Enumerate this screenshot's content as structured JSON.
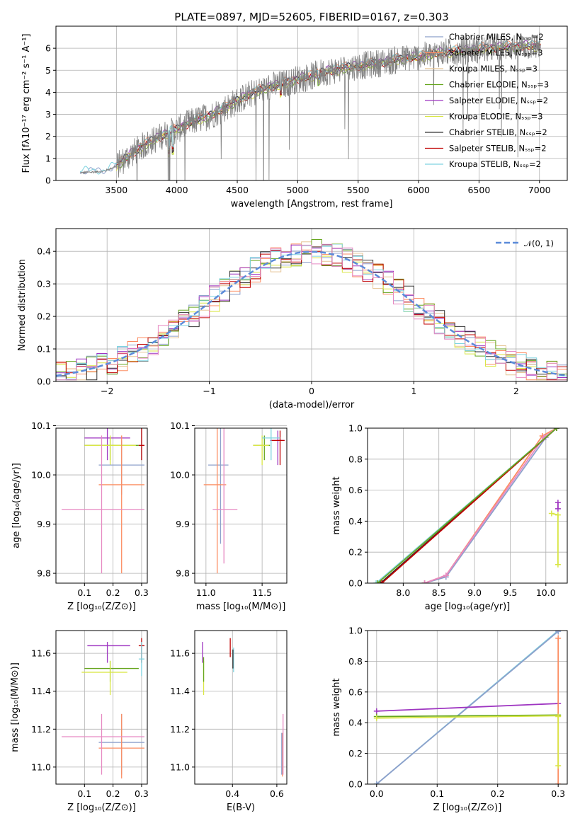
{
  "chart_data": [
    {
      "id": "spectrum",
      "type": "line",
      "title": "PLATE=0897, MJD=52605, FIBERID=0167, z=0.303",
      "xlabel": "wavelength [Angstrom, rest frame]",
      "ylabel": "Flux [fλ10⁻¹⁷ erg cm⁻² s⁻¹ A⁻¹]",
      "xlim": [
        3000,
        7230
      ],
      "ylim": [
        0,
        7
      ],
      "xticks": [
        3500,
        4000,
        4500,
        5000,
        5500,
        6000,
        6500,
        7000
      ],
      "yticks": [
        0,
        1,
        2,
        3,
        4,
        5,
        6
      ],
      "grid": true,
      "legend_position": "top-right",
      "data_trace": {
        "x": [
          3200,
          3300,
          3400,
          3500,
          3600,
          3700,
          3800,
          3900,
          4000,
          4100,
          4200,
          4300,
          4400,
          4500,
          4600,
          4700,
          4800,
          4900,
          5000,
          5100,
          5200,
          5300,
          5400,
          5500,
          5600,
          5700,
          5800,
          5900,
          6000,
          6100,
          6200,
          6300,
          6400,
          6500,
          6600,
          6700,
          6800,
          6900,
          7000
        ],
        "y": [
          0.35,
          0.38,
          0.42,
          0.65,
          1.1,
          1.5,
          1.8,
          2.1,
          2.3,
          2.6,
          2.8,
          3.0,
          3.3,
          3.6,
          3.9,
          4.1,
          4.3,
          4.4,
          4.6,
          4.7,
          4.9,
          5.0,
          5.1,
          5.2,
          5.25,
          5.35,
          5.45,
          5.55,
          5.6,
          5.7,
          5.8,
          5.85,
          5.9,
          5.95,
          6.0,
          6.05,
          6.05,
          6.1,
          6.1
        ]
      },
      "series": [
        {
          "name": "Chabrier MILES, Nₛₛₚ=2",
          "color": "#8da0cb",
          "offset": 0.04
        },
        {
          "name": "Salpeter MILES, Nₛₛₚ=3",
          "color": "#fc8d62",
          "offset": 0.1
        },
        {
          "name": "Kroupa MILES, Nₛₛₚ=3",
          "color": "#e5c494",
          "offset": 0.0
        },
        {
          "name": "Chabrier ELODIE, Nₛₛₚ=3",
          "color": "#66a61e",
          "offset": -0.04
        },
        {
          "name": "Salpeter ELODIE, Nₛₛₚ=2",
          "color": "#9e35c1",
          "offset": 0.06
        },
        {
          "name": "Kroupa ELODIE, Nₛₛₚ=3",
          "color": "#d9e645",
          "offset": -0.06
        },
        {
          "name": "Chabrier STELIB, Nₛₛₚ=2",
          "color": "#333333",
          "offset": 0.02
        },
        {
          "name": "Salpeter STELIB, Nₛₛₚ=2",
          "color": "#c00000",
          "offset": -0.02
        },
        {
          "name": "Kroupa STELIB, Nₛₛₚ=2",
          "color": "#7fd4e0",
          "offset": 0.08
        }
      ]
    },
    {
      "id": "residuals",
      "type": "histogram",
      "title": "",
      "xlabel": "(data-model)/error",
      "ylabel": "Normed distribution",
      "xlim": [
        -2.5,
        2.5
      ],
      "ylim": [
        0,
        0.47
      ],
      "xticks": [
        -2,
        -1,
        0,
        1,
        2
      ],
      "yticks": [
        0.0,
        0.1,
        0.2,
        0.3,
        0.4
      ],
      "grid": true,
      "legend_position": "top-right",
      "legend": "𝒩(0, 1)",
      "gaussian_color": "#5b8bd9",
      "bin_width": 0.1
    },
    {
      "id": "z-age",
      "type": "errorbar",
      "xlabel": "Z [log₁₀(Z/Z⊙)]",
      "ylabel": "age  [log₁₀(age/yr)]",
      "xlim": [
        0.0,
        0.32
      ],
      "ylim": [
        9.78,
        10.095
      ],
      "xticks": [
        0.1,
        0.2,
        0.3
      ],
      "yticks": [
        9.8,
        9.9,
        10.0,
        10.1
      ],
      "points": [
        {
          "x": 0.18,
          "xlo": 0.1,
          "xhi": 0.26,
          "y": 10.075,
          "ylo": 10.03,
          "yhi": 10.095,
          "color": "#9e35c1"
        },
        {
          "x": 0.19,
          "xlo": 0.1,
          "xhi": 0.29,
          "y": 10.06,
          "ylo": 10.03,
          "yhi": 10.075,
          "color": "#66a61e"
        },
        {
          "x": 0.19,
          "xlo": 0.1,
          "xhi": 0.28,
          "y": 10.06,
          "ylo": 10.02,
          "yhi": 10.08,
          "color": "#d9e645"
        },
        {
          "x": 0.3,
          "xlo": 0.29,
          "xhi": 0.31,
          "y": 10.06,
          "ylo": 10.03,
          "yhi": 10.095,
          "color": "#7fd4e0"
        },
        {
          "x": 0.3,
          "xlo": 0.29,
          "xhi": 0.31,
          "y": 10.06,
          "ylo": 10.03,
          "yhi": 10.095,
          "color": "#c00000"
        },
        {
          "x": 0.23,
          "xlo": 0.15,
          "xhi": 0.31,
          "y": 10.02,
          "ylo": 9.96,
          "yhi": 10.07,
          "color": "#8da0cb"
        },
        {
          "x": 0.23,
          "xlo": 0.15,
          "xhi": 0.31,
          "y": 9.98,
          "ylo": 9.8,
          "yhi": 10.08,
          "color": "#fc8d62"
        },
        {
          "x": 0.16,
          "xlo": 0.02,
          "xhi": 0.31,
          "y": 9.93,
          "ylo": 9.8,
          "yhi": 10.08,
          "color": "#e78ac3"
        }
      ]
    },
    {
      "id": "mass-age",
      "type": "errorbar",
      "xlabel": "mass [log₁₀(M/M⊙)]",
      "ylabel": "",
      "xlim": [
        10.9,
        11.72
      ],
      "ylim": [
        9.78,
        10.095
      ],
      "xticks": [
        11.0,
        11.5
      ],
      "yticks": [
        9.8,
        9.9,
        10.0,
        10.1
      ],
      "points": [
        {
          "x": 11.64,
          "xlo": 11.57,
          "xhi": 11.7,
          "y": 10.07,
          "ylo": 10.02,
          "yhi": 10.09,
          "color": "#9e35c1"
        },
        {
          "x": 11.66,
          "xlo": 11.58,
          "xhi": 11.7,
          "y": 10.07,
          "ylo": 10.02,
          "yhi": 10.09,
          "color": "#c00000"
        },
        {
          "x": 11.52,
          "xlo": 11.42,
          "xhi": 11.57,
          "y": 10.06,
          "ylo": 10.03,
          "yhi": 10.08,
          "color": "#66a61e"
        },
        {
          "x": 11.5,
          "xlo": 11.42,
          "xhi": 11.56,
          "y": 10.06,
          "ylo": 10.02,
          "yhi": 10.08,
          "color": "#d9e645"
        },
        {
          "x": 11.58,
          "xlo": 11.5,
          "xhi": 11.66,
          "y": 10.075,
          "ylo": 10.03,
          "yhi": 10.095,
          "color": "#7fd4e0"
        },
        {
          "x": 11.13,
          "xlo": 11.02,
          "xhi": 11.2,
          "y": 10.02,
          "ylo": 9.86,
          "yhi": 10.1,
          "color": "#8da0cb"
        },
        {
          "x": 11.1,
          "xlo": 10.98,
          "xhi": 11.18,
          "y": 9.98,
          "ylo": 9.8,
          "yhi": 10.1,
          "color": "#fc8d62"
        },
        {
          "x": 11.16,
          "xlo": 11.06,
          "xhi": 11.28,
          "y": 9.93,
          "ylo": 9.82,
          "yhi": 10.1,
          "color": "#e78ac3"
        }
      ]
    },
    {
      "id": "age-massweight",
      "type": "line",
      "xlabel": "age  [log₁₀(age/yr)]",
      "ylabel": "mass weight",
      "xlim": [
        7.5,
        10.3
      ],
      "ylim": [
        0,
        1
      ],
      "xticks": [
        8.0,
        8.5,
        9.0,
        9.5,
        10.0
      ],
      "yticks": [
        0.0,
        0.2,
        0.4,
        0.6,
        0.8,
        1.0
      ],
      "series": [
        {
          "color": "#8da0cb",
          "x": [
            8.3,
            8.6,
            10.0,
            10.15
          ],
          "y": [
            0.0,
            0.04,
            0.94,
            1.0
          ]
        },
        {
          "color": "#fc8d62",
          "x": [
            8.3,
            8.6,
            9.95,
            10.15
          ],
          "y": [
            0.0,
            0.05,
            0.95,
            1.0
          ]
        },
        {
          "color": "#e78ac3",
          "x": [
            8.3,
            8.6,
            9.97,
            10.15
          ],
          "y": [
            0.0,
            0.05,
            0.94,
            1.0
          ]
        },
        {
          "color": "#333333",
          "x": [
            7.68,
            10.15
          ],
          "y": [
            0.0,
            1.0
          ]
        },
        {
          "color": "#c00000",
          "x": [
            7.7,
            10.15
          ],
          "y": [
            0.0,
            1.0
          ]
        },
        {
          "color": "#7fd4e0",
          "x": [
            7.62,
            10.15
          ],
          "y": [
            0.0,
            1.0
          ]
        },
        {
          "color": "#66a61e",
          "x": [
            7.64,
            10.15
          ],
          "y": [
            0.0,
            1.0
          ]
        },
        {
          "color": "#9e35c1",
          "x": [
            10.17,
            10.17
          ],
          "y": [
            0.48,
            0.52
          ]
        },
        {
          "color": "#d9e645",
          "x": [
            10.08,
            10.17,
            10.17
          ],
          "y": [
            0.45,
            0.44,
            0.12
          ]
        }
      ]
    },
    {
      "id": "z-mass",
      "type": "errorbar",
      "xlabel": "Z [log₁₀(Z/Z⊙)]",
      "ylabel": "mass [log₁₀(M/M⊙)]",
      "xlim": [
        0.0,
        0.32
      ],
      "ylim": [
        10.91,
        11.72
      ],
      "xticks": [
        0.1,
        0.2,
        0.3
      ],
      "yticks": [
        11.0,
        11.2,
        11.4,
        11.6
      ],
      "points": [
        {
          "x": 0.18,
          "xlo": 0.11,
          "xhi": 0.26,
          "y": 11.64,
          "ylo": 11.55,
          "yhi": 11.66,
          "color": "#9e35c1"
        },
        {
          "x": 0.3,
          "xlo": 0.29,
          "xhi": 0.31,
          "y": 11.64,
          "ylo": 11.55,
          "yhi": 11.68,
          "color": "#c00000"
        },
        {
          "x": 0.19,
          "xlo": 0.1,
          "xhi": 0.29,
          "y": 11.52,
          "ylo": 11.45,
          "yhi": 11.56,
          "color": "#66a61e"
        },
        {
          "x": 0.19,
          "xlo": 0.09,
          "xhi": 0.25,
          "y": 11.5,
          "ylo": 11.38,
          "yhi": 11.56,
          "color": "#d9e645"
        },
        {
          "x": 0.3,
          "xlo": 0.29,
          "xhi": 0.31,
          "y": 11.57,
          "ylo": 11.48,
          "yhi": 11.66,
          "color": "#7fd4e0"
        },
        {
          "x": 0.23,
          "xlo": 0.15,
          "xhi": 0.31,
          "y": 11.13,
          "ylo": 10.96,
          "yhi": 11.28,
          "color": "#8da0cb"
        },
        {
          "x": 0.23,
          "xlo": 0.15,
          "xhi": 0.31,
          "y": 11.1,
          "ylo": 10.94,
          "yhi": 11.28,
          "color": "#fc8d62"
        },
        {
          "x": 0.16,
          "xlo": 0.02,
          "xhi": 0.31,
          "y": 11.16,
          "ylo": 10.96,
          "yhi": 11.28,
          "color": "#e78ac3"
        }
      ]
    },
    {
      "id": "ebv-mass",
      "type": "errorbar",
      "xlabel": "E(B-V)",
      "ylabel": "",
      "xlim": [
        0.23,
        0.645
      ],
      "ylim": [
        10.91,
        11.72
      ],
      "xticks": [
        0.4,
        0.6
      ],
      "yticks": [
        11.0,
        11.2,
        11.4,
        11.6
      ],
      "points": [
        {
          "x": 0.265,
          "xlo": 0.265,
          "xhi": 0.265,
          "y": 11.6,
          "ylo": 11.55,
          "yhi": 11.66,
          "color": "#9e35c1"
        },
        {
          "x": 0.27,
          "xlo": 0.27,
          "xhi": 0.27,
          "y": 11.5,
          "ylo": 11.38,
          "yhi": 11.56,
          "color": "#d9e645"
        },
        {
          "x": 0.27,
          "xlo": 0.27,
          "xhi": 0.27,
          "y": 11.53,
          "ylo": 11.45,
          "yhi": 11.58,
          "color": "#66a61e"
        },
        {
          "x": 0.39,
          "xlo": 0.39,
          "xhi": 0.39,
          "y": 11.63,
          "ylo": 11.58,
          "yhi": 11.68,
          "color": "#c00000"
        },
        {
          "x": 0.405,
          "xlo": 0.405,
          "xhi": 0.405,
          "y": 11.57,
          "ylo": 11.5,
          "yhi": 11.63,
          "color": "#7fd4e0"
        },
        {
          "x": 0.402,
          "xlo": 0.402,
          "xhi": 0.402,
          "y": 11.58,
          "ylo": 11.52,
          "yhi": 11.62,
          "color": "#333333"
        },
        {
          "x": 0.625,
          "xlo": 0.625,
          "xhi": 0.625,
          "y": 11.1,
          "ylo": 10.95,
          "yhi": 11.18,
          "color": "#fc8d62"
        },
        {
          "x": 0.628,
          "xlo": 0.628,
          "xhi": 0.628,
          "y": 11.13,
          "ylo": 10.96,
          "yhi": 11.28,
          "color": "#e78ac3"
        },
        {
          "x": 0.622,
          "xlo": 0.622,
          "xhi": 0.622,
          "y": 11.12,
          "ylo": 10.96,
          "yhi": 11.18,
          "color": "#8da0cb"
        }
      ]
    },
    {
      "id": "z-massweight",
      "type": "line",
      "xlabel": "Z [log₁₀(Z/Z⊙)]",
      "ylabel": "mass weight",
      "xlim": [
        -0.015,
        0.315
      ],
      "ylim": [
        0,
        1
      ],
      "xticks": [
        0.0,
        0.1,
        0.2,
        0.3
      ],
      "yticks": [
        0.0,
        0.2,
        0.4,
        0.6,
        0.8,
        1.0
      ],
      "series": [
        {
          "color": "#7fd4e0",
          "x": [
            0.0,
            0.3
          ],
          "y": [
            0.0,
            1.0
          ]
        },
        {
          "color": "#8da0cb",
          "x": [
            0.0,
            0.3
          ],
          "y": [
            0.0,
            0.995
          ]
        },
        {
          "color": "#9e35c1",
          "x": [
            0.0,
            0.3
          ],
          "y": [
            0.475,
            0.525
          ]
        },
        {
          "color": "#66a61e",
          "x": [
            0.0,
            0.3
          ],
          "y": [
            0.44,
            0.45
          ]
        },
        {
          "color": "#d9e645",
          "x": [
            0.0,
            0.3
          ],
          "y": [
            0.43,
            0.445
          ]
        },
        {
          "color": "#fc8d62",
          "x": [
            0.3,
            0.3
          ],
          "y": [
            0.0,
            0.95
          ]
        },
        {
          "color": "#d9e645",
          "x": [
            0.3,
            0.3
          ],
          "y": [
            0.12,
            0.44
          ]
        }
      ]
    }
  ]
}
